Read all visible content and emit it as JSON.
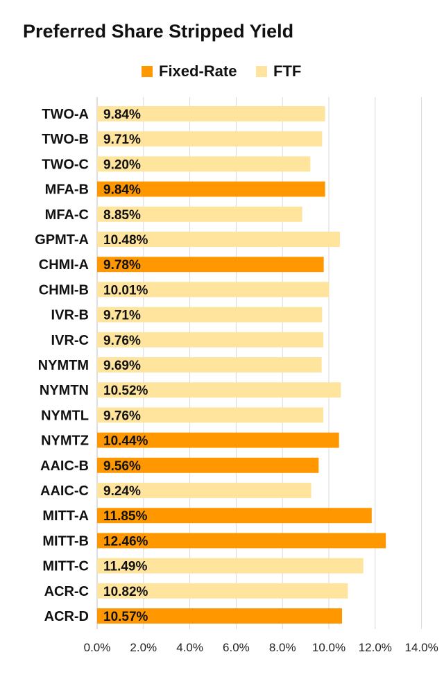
{
  "chart_data": {
    "type": "bar",
    "orientation": "horizontal",
    "title": "Preferred Share Stripped Yield",
    "legend": [
      {
        "name": "Fixed-Rate",
        "color": "#ff9800"
      },
      {
        "name": "FTF",
        "color": "#ffe49e"
      }
    ],
    "legend_position": "top-center",
    "grid": true,
    "xlim": [
      0,
      14
    ],
    "ticks": [
      "0.0%",
      "2.0%",
      "4.0%",
      "6.0%",
      "8.0%",
      "10.0%",
      "12.0%",
      "14.0%"
    ],
    "bars": [
      {
        "category": "TWO-A",
        "value": 9.84,
        "label": "9.84%",
        "series": "FTF"
      },
      {
        "category": "TWO-B",
        "value": 9.71,
        "label": "9.71%",
        "series": "FTF"
      },
      {
        "category": "TWO-C",
        "value": 9.2,
        "label": "9.20%",
        "series": "FTF"
      },
      {
        "category": "MFA-B",
        "value": 9.84,
        "label": "9.84%",
        "series": "Fixed-Rate"
      },
      {
        "category": "MFA-C",
        "value": 8.85,
        "label": "8.85%",
        "series": "FTF"
      },
      {
        "category": "GPMT-A",
        "value": 10.48,
        "label": "10.48%",
        "series": "FTF"
      },
      {
        "category": "CHMI-A",
        "value": 9.78,
        "label": "9.78%",
        "series": "Fixed-Rate"
      },
      {
        "category": "CHMI-B",
        "value": 10.01,
        "label": "10.01%",
        "series": "FTF"
      },
      {
        "category": "IVR-B",
        "value": 9.71,
        "label": "9.71%",
        "series": "FTF"
      },
      {
        "category": "IVR-C",
        "value": 9.76,
        "label": "9.76%",
        "series": "FTF"
      },
      {
        "category": "NYMTM",
        "value": 9.69,
        "label": "9.69%",
        "series": "FTF"
      },
      {
        "category": "NYMTN",
        "value": 10.52,
        "label": "10.52%",
        "series": "FTF"
      },
      {
        "category": "NYMTL",
        "value": 9.76,
        "label": "9.76%",
        "series": "FTF"
      },
      {
        "category": "NYMTZ",
        "value": 10.44,
        "label": "10.44%",
        "series": "Fixed-Rate"
      },
      {
        "category": "AAIC-B",
        "value": 9.56,
        "label": "9.56%",
        "series": "Fixed-Rate"
      },
      {
        "category": "AAIC-C",
        "value": 9.24,
        "label": "9.24%",
        "series": "FTF"
      },
      {
        "category": "MITT-A",
        "value": 11.85,
        "label": "11.85%",
        "series": "Fixed-Rate"
      },
      {
        "category": "MITT-B",
        "value": 12.46,
        "label": "12.46%",
        "series": "Fixed-Rate"
      },
      {
        "category": "MITT-C",
        "value": 11.49,
        "label": "11.49%",
        "series": "FTF"
      },
      {
        "category": "ACR-C",
        "value": 10.82,
        "label": "10.82%",
        "series": "FTF"
      },
      {
        "category": "ACR-D",
        "value": 10.57,
        "label": "10.57%",
        "series": "Fixed-Rate"
      }
    ]
  }
}
